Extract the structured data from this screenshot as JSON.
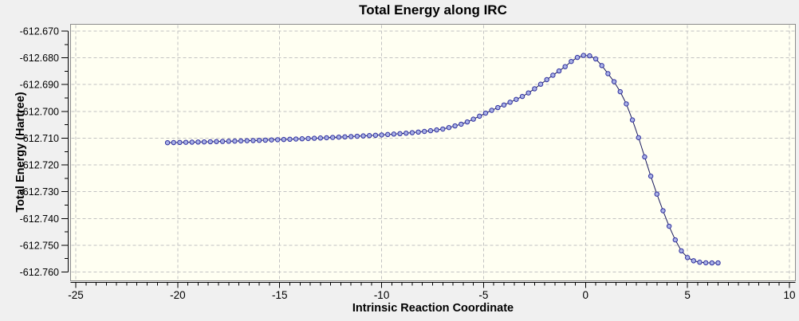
{
  "window": {
    "background": "#f0f0f0"
  },
  "chart_data": {
    "type": "line",
    "title": "Total Energy along IRC",
    "xlabel": "Intrinsic Reaction Coordinate",
    "ylabel": "Total Energy (Hartree)",
    "xlim": [
      -25,
      10
    ],
    "ylim": [
      -612.76,
      -612.67
    ],
    "x_major_ticks": [
      -25,
      -20,
      -15,
      -10,
      -5,
      0,
      5,
      10
    ],
    "x_minor_step": 0.5,
    "y_major_ticks": [
      -612.67,
      -612.68,
      -612.69,
      -612.7,
      -612.71,
      -612.72,
      -612.73,
      -612.74,
      -612.75,
      -612.76
    ],
    "y_minor_step": 0.005,
    "y_tick_decimals": 3,
    "grid": "dashed-on-major-ticks",
    "legend": "none",
    "colors": {
      "plot_bg": "#fffff2",
      "frame": "#8c8c8c",
      "grid": "#c2c2c2",
      "axis": "#000000",
      "line": "#1a1a5e",
      "marker_stroke": "#2e2e9e",
      "marker_fill": "#aab2e6"
    },
    "series": [
      {
        "name": "Total Energy",
        "marker": "circle",
        "x": [
          -20.5,
          -20.2,
          -19.9,
          -19.6,
          -19.3,
          -19,
          -18.7,
          -18.4,
          -18.1,
          -17.8,
          -17.5,
          -17.2,
          -16.9,
          -16.6,
          -16.3,
          -16,
          -15.7,
          -15.4,
          -15.1,
          -14.8,
          -14.5,
          -14.2,
          -13.9,
          -13.6,
          -13.3,
          -13,
          -12.7,
          -12.4,
          -12.1,
          -11.8,
          -11.5,
          -11.2,
          -10.9,
          -10.6,
          -10.3,
          -10,
          -9.7,
          -9.4,
          -9.1,
          -8.8,
          -8.5,
          -8.2,
          -7.9,
          -7.6,
          -7.3,
          -7,
          -6.7,
          -6.4,
          -6.1,
          -5.8,
          -5.5,
          -5.2,
          -4.9,
          -4.6,
          -4.3,
          -4,
          -3.7,
          -3.4,
          -3.1,
          -2.8,
          -2.5,
          -2.2,
          -1.9,
          -1.6,
          -1.3,
          -1,
          -0.7,
          -0.4,
          -0.1,
          0.2,
          0.5,
          0.8,
          1.1,
          1.4,
          1.7,
          2,
          2.3,
          2.6,
          2.9,
          3.2,
          3.5,
          3.8,
          4.1,
          4.4,
          4.7,
          5,
          5.3,
          5.6,
          5.9,
          6.2,
          6.5
        ],
        "y": [
          -612.7117,
          -612.71165,
          -612.7116,
          -612.71155,
          -612.7115,
          -612.71145,
          -612.7114,
          -612.71134,
          -612.71128,
          -612.71122,
          -612.71116,
          -612.7111,
          -612.71103,
          -612.71096,
          -612.71089,
          -612.71082,
          -612.71074,
          -612.71066,
          -612.71058,
          -612.7105,
          -612.71041,
          -612.71032,
          -612.71023,
          -612.71014,
          -612.71004,
          -612.70994,
          -612.70984,
          -612.70973,
          -612.70962,
          -612.70951,
          -612.7094,
          -612.70928,
          -612.70916,
          -612.70904,
          -612.70892,
          -612.7088,
          -612.70864,
          -612.70848,
          -612.70832,
          -612.70814,
          -612.70795,
          -612.70773,
          -612.70749,
          -612.70722,
          -612.70693,
          -612.7066,
          -612.70605,
          -612.70542,
          -612.70478,
          -612.70395,
          -612.7029,
          -612.7018,
          -612.70065,
          -612.6996,
          -612.69858,
          -612.6976,
          -612.69658,
          -612.69552,
          -612.69442,
          -612.6931,
          -612.69155,
          -612.68985,
          -612.68815,
          -612.6865,
          -612.6849,
          -612.6833,
          -612.68135,
          -612.67985,
          -612.6791,
          -612.67925,
          -612.6804,
          -612.6829,
          -612.6859,
          -612.6889,
          -612.69265,
          -612.6972,
          -612.7032,
          -612.7098,
          -612.717,
          -612.7242,
          -612.7309,
          -612.7371,
          -612.7429,
          -612.748,
          -612.7521,
          -612.7546,
          -612.7558,
          -612.75635,
          -612.75655,
          -612.7566,
          -612.7566
        ]
      }
    ]
  }
}
